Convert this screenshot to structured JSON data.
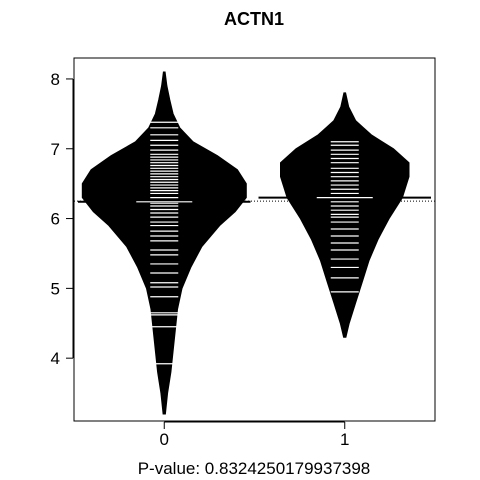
{
  "chart_data": {
    "type": "beanplot",
    "title": "ACTN1",
    "xlabel": "P-value: 0.8324250179937398",
    "ylabel": "",
    "categories": [
      "0",
      "1"
    ],
    "ylim": [
      3.1,
      8.3
    ],
    "yticks": [
      4,
      5,
      6,
      7,
      8
    ],
    "overall_mean": 6.25,
    "grid": false,
    "legend": "none",
    "colors": {
      "bean": "#000000",
      "beanline": "#ffffff",
      "background": "#ffffff"
    },
    "groups": [
      {
        "category": "0",
        "mean": 6.24,
        "density": [
          [
            3.2,
            0.005
          ],
          [
            3.5,
            0.015
          ],
          [
            3.8,
            0.03
          ],
          [
            4.1,
            0.04
          ],
          [
            4.4,
            0.05
          ],
          [
            4.7,
            0.06
          ],
          [
            5.0,
            0.08
          ],
          [
            5.3,
            0.12
          ],
          [
            5.6,
            0.17
          ],
          [
            5.9,
            0.25
          ],
          [
            6.1,
            0.32
          ],
          [
            6.3,
            0.37
          ],
          [
            6.5,
            0.37
          ],
          [
            6.7,
            0.33
          ],
          [
            6.9,
            0.24
          ],
          [
            7.1,
            0.13
          ],
          [
            7.3,
            0.07
          ],
          [
            7.5,
            0.04
          ],
          [
            7.7,
            0.025
          ],
          [
            7.9,
            0.012
          ],
          [
            8.1,
            0.004
          ]
        ],
        "observations": [
          3.92,
          4.45,
          4.62,
          4.65,
          4.88,
          5.02,
          5.08,
          5.22,
          5.35,
          5.48,
          5.55,
          5.68,
          5.75,
          5.82,
          5.9,
          5.95,
          6.02,
          6.08,
          6.13,
          6.18,
          6.22,
          6.3,
          6.36,
          6.4,
          6.44,
          6.48,
          6.52,
          6.56,
          6.6,
          6.64,
          6.68,
          6.72,
          6.76,
          6.8,
          6.84,
          6.88,
          6.92,
          6.98,
          7.05,
          7.12,
          7.2,
          7.3,
          7.38
        ]
      },
      {
        "category": "1",
        "mean": 6.3,
        "density": [
          [
            4.3,
            0.005
          ],
          [
            4.5,
            0.02
          ],
          [
            4.8,
            0.05
          ],
          [
            5.1,
            0.08
          ],
          [
            5.4,
            0.11
          ],
          [
            5.7,
            0.15
          ],
          [
            6.0,
            0.2
          ],
          [
            6.3,
            0.26
          ],
          [
            6.6,
            0.29
          ],
          [
            6.8,
            0.29
          ],
          [
            7.0,
            0.22
          ],
          [
            7.2,
            0.12
          ],
          [
            7.4,
            0.05
          ],
          [
            7.6,
            0.018
          ],
          [
            7.8,
            0.004
          ]
        ],
        "observations": [
          4.95,
          5.15,
          5.3,
          5.42,
          5.55,
          5.65,
          5.75,
          5.85,
          5.95,
          6.02,
          6.06,
          6.12,
          6.18,
          6.24,
          6.3,
          6.36,
          6.42,
          6.48,
          6.54,
          6.6,
          6.66,
          6.72,
          6.8,
          6.86,
          6.92,
          6.98,
          7.05,
          7.1
        ]
      }
    ]
  }
}
